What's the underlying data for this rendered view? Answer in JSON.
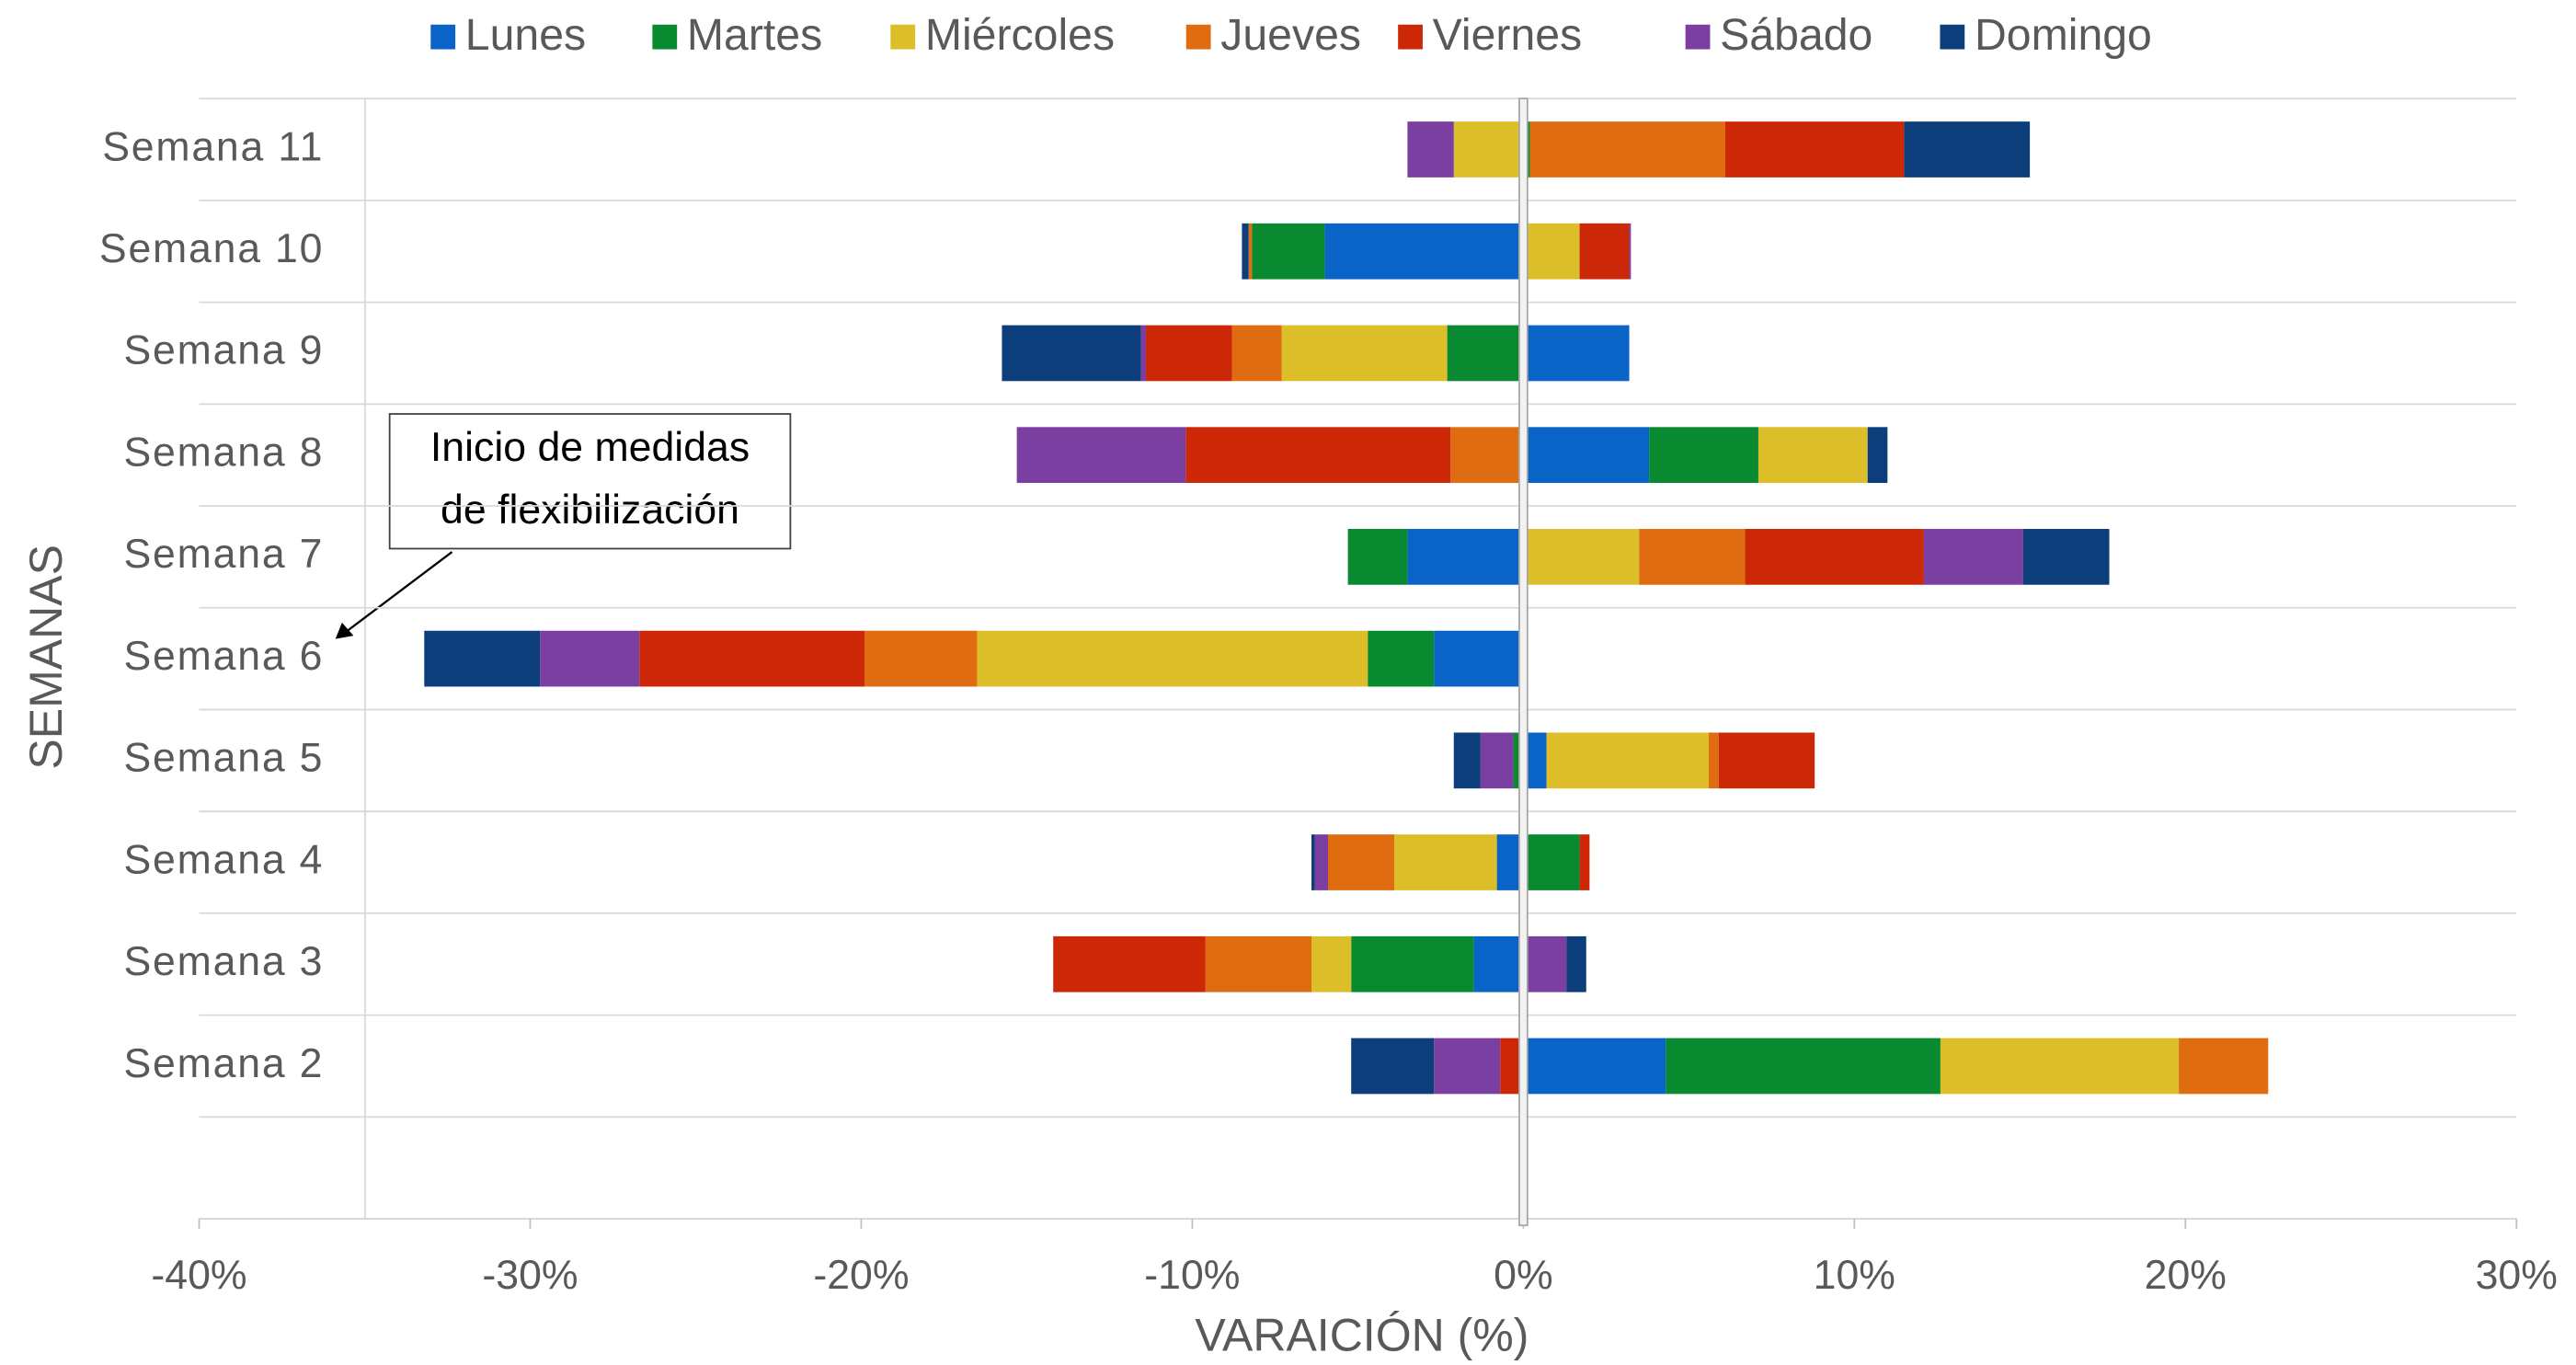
{
  "chart_data": {
    "type": "diverging_stacked_bar",
    "x_label": "VARAICIÓN (%)",
    "y_label": "SEMANAS",
    "categories": [
      null,
      "Semana 2",
      "Semana 3",
      "Semana 4",
      "Semana 5",
      "Semana 6",
      "Semana 7",
      "Semana 8",
      "Semana 9",
      "Semana 10",
      "Semana 11"
    ],
    "series": [
      {
        "name": "Lunes",
        "color": "#0a64c8",
        "values": [
          null,
          4.3,
          -1.5,
          -0.8,
          0.7,
          -2.7,
          -3.5,
          3.8,
          3.2,
          -6.0,
          -0.1
        ]
      },
      {
        "name": "Martes",
        "color": "#0a8a30",
        "values": [
          null,
          8.3,
          -3.7,
          1.7,
          -0.3,
          -2.0,
          -1.8,
          3.3,
          -2.3,
          -2.2,
          0.2
        ]
      },
      {
        "name": "Miércoles",
        "color": "#dcbf28",
        "values": [
          null,
          7.2,
          -1.2,
          -3.1,
          4.9,
          -11.8,
          3.5,
          3.3,
          -5.0,
          1.7,
          -2.0
        ]
      },
      {
        "name": "Jueves",
        "color": "#e06c12",
        "values": [
          null,
          2.7,
          -3.2,
          -2.0,
          0.3,
          -3.4,
          3.2,
          -2.2,
          -1.5,
          -0.1,
          5.9
        ]
      },
      {
        "name": "Viernes",
        "color": "#cc2808",
        "values": [
          null,
          -0.7,
          -4.6,
          0.3,
          2.9,
          -6.8,
          5.4,
          -8.0,
          -2.6,
          1.5,
          5.4
        ]
      },
      {
        "name": "Sábado",
        "color": "#7a3fa0",
        "values": [
          null,
          -2.0,
          1.3,
          -0.4,
          -1.0,
          -3.0,
          3.0,
          -5.1,
          -0.15,
          0.05,
          -1.4
        ]
      },
      {
        "name": "Domingo",
        "color": "#0b3e7a",
        "values": [
          null,
          -2.5,
          0.6,
          -0.1,
          -0.8,
          -3.5,
          2.6,
          0.6,
          -4.2,
          -0.2,
          3.8
        ]
      }
    ],
    "xlim": [
      -40,
      30
    ],
    "xticks": [
      {
        "value": -40,
        "label": "-40%"
      },
      {
        "value": -30,
        "label": "-30%"
      },
      {
        "value": -20,
        "label": "-20%"
      },
      {
        "value": -10,
        "label": "-10%"
      },
      {
        "value": 0,
        "label": "0%"
      },
      {
        "value": 10,
        "label": "10%"
      },
      {
        "value": 20,
        "label": "20%"
      },
      {
        "value": 30,
        "label": "30%"
      }
    ],
    "grid": true,
    "legend": "top",
    "annotation": {
      "lines": [
        "Inicio de medidas",
        "de flexibilización"
      ]
    }
  }
}
